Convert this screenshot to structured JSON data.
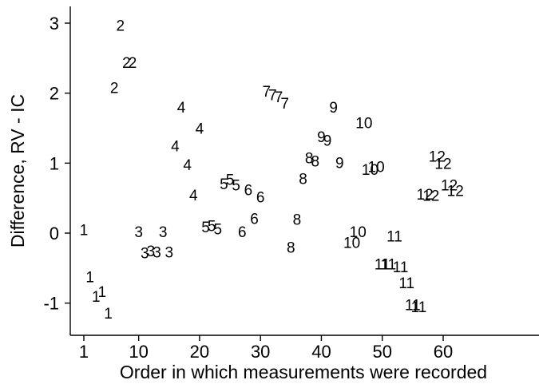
{
  "chart_data": {
    "type": "scatter",
    "xlabel": "Order in which measurements were recorded",
    "ylabel": "Difference, RV - IC",
    "xlim": [
      1,
      61
    ],
    "ylim": [
      -1.25,
      3.2
    ],
    "xticks": [
      1,
      10,
      20,
      30,
      40,
      50,
      60
    ],
    "xtick_labels": [
      "1",
      "10",
      "20",
      "30",
      "40",
      "50",
      "60"
    ],
    "yticks": [
      -1,
      0,
      1,
      2,
      3
    ],
    "ytick_labels": [
      "-1",
      "0",
      "1",
      "2",
      "3"
    ],
    "grid": false,
    "marker_style": "subject ID number",
    "points": [
      {
        "x": 1,
        "y": 0.05,
        "label": "1"
      },
      {
        "x": 2,
        "y": -0.62,
        "label": "1"
      },
      {
        "x": 3,
        "y": -0.9,
        "label": "1"
      },
      {
        "x": 4,
        "y": -0.83,
        "label": "1"
      },
      {
        "x": 5,
        "y": -1.14,
        "label": "1"
      },
      {
        "x": 6,
        "y": 2.08,
        "label": "2"
      },
      {
        "x": 7,
        "y": 2.97,
        "label": "2"
      },
      {
        "x": 8,
        "y": 2.44,
        "label": "2"
      },
      {
        "x": 9,
        "y": 2.44,
        "label": "2"
      },
      {
        "x": 10,
        "y": 0.02,
        "label": "3"
      },
      {
        "x": 11,
        "y": -0.28,
        "label": "3"
      },
      {
        "x": 12,
        "y": -0.25,
        "label": "3"
      },
      {
        "x": 13,
        "y": -0.27,
        "label": "3"
      },
      {
        "x": 14,
        "y": 0.02,
        "label": "3"
      },
      {
        "x": 15,
        "y": -0.27,
        "label": "3"
      },
      {
        "x": 16,
        "y": 1.25,
        "label": "4"
      },
      {
        "x": 17,
        "y": 1.8,
        "label": "4"
      },
      {
        "x": 18,
        "y": 0.98,
        "label": "4"
      },
      {
        "x": 19,
        "y": 0.55,
        "label": "4"
      },
      {
        "x": 20,
        "y": 1.5,
        "label": "4"
      },
      {
        "x": 21,
        "y": 0.09,
        "label": "5"
      },
      {
        "x": 22,
        "y": 0.11,
        "label": "5"
      },
      {
        "x": 23,
        "y": 0.06,
        "label": "5"
      },
      {
        "x": 24,
        "y": 0.71,
        "label": "5"
      },
      {
        "x": 25,
        "y": 0.77,
        "label": "5"
      },
      {
        "x": 26,
        "y": 0.69,
        "label": "5"
      },
      {
        "x": 27,
        "y": 0.02,
        "label": "6"
      },
      {
        "x": 28,
        "y": 0.62,
        "label": "6"
      },
      {
        "x": 29,
        "y": 0.21,
        "label": "6"
      },
      {
        "x": 30,
        "y": 0.52,
        "label": "6"
      },
      {
        "x": 31,
        "y": 2.03,
        "label": "7"
      },
      {
        "x": 32,
        "y": 1.98,
        "label": "7"
      },
      {
        "x": 33,
        "y": 1.95,
        "label": "7"
      },
      {
        "x": 34,
        "y": 1.86,
        "label": "7"
      },
      {
        "x": 35,
        "y": -0.2,
        "label": "8"
      },
      {
        "x": 36,
        "y": 0.2,
        "label": "8"
      },
      {
        "x": 37,
        "y": 0.78,
        "label": "8"
      },
      {
        "x": 38,
        "y": 1.08,
        "label": "8"
      },
      {
        "x": 39,
        "y": 1.03,
        "label": "8"
      },
      {
        "x": 40,
        "y": 1.38,
        "label": "9"
      },
      {
        "x": 41,
        "y": 1.33,
        "label": "9"
      },
      {
        "x": 42,
        "y": 1.8,
        "label": "9"
      },
      {
        "x": 43,
        "y": 1.01,
        "label": "9"
      },
      {
        "x": 45,
        "y": -0.13,
        "label": "10"
      },
      {
        "x": 46,
        "y": 0.02,
        "label": "10"
      },
      {
        "x": 47,
        "y": 1.58,
        "label": "10"
      },
      {
        "x": 48,
        "y": 0.91,
        "label": "10"
      },
      {
        "x": 49,
        "y": 0.95,
        "label": "10"
      },
      {
        "x": 50,
        "y": -0.44,
        "label": "11"
      },
      {
        "x": 51,
        "y": -0.44,
        "label": "11"
      },
      {
        "x": 52,
        "y": -0.04,
        "label": "11"
      },
      {
        "x": 53,
        "y": -0.48,
        "label": "11"
      },
      {
        "x": 54,
        "y": -0.71,
        "label": "11"
      },
      {
        "x": 55,
        "y": -1.02,
        "label": "11"
      },
      {
        "x": 56,
        "y": -1.05,
        "label": "11"
      },
      {
        "x": 57,
        "y": 0.56,
        "label": "12"
      },
      {
        "x": 58,
        "y": 0.54,
        "label": "12"
      },
      {
        "x": 59,
        "y": 1.1,
        "label": "12"
      },
      {
        "x": 60,
        "y": 1.0,
        "label": "12"
      },
      {
        "x": 61,
        "y": 0.69,
        "label": "12"
      },
      {
        "x": 62,
        "y": 0.61,
        "label": "12"
      }
    ]
  }
}
